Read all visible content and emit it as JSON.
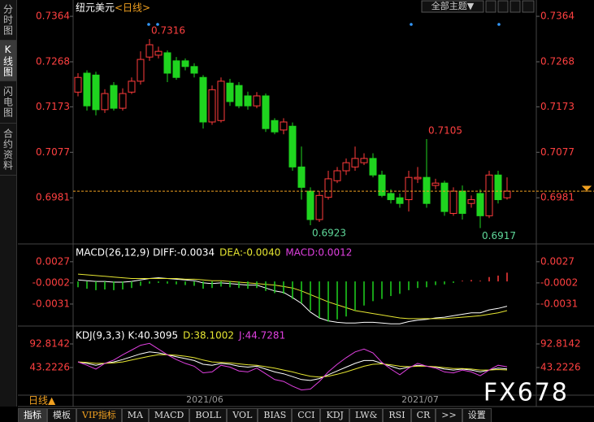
{
  "sidebar": [
    "分时图",
    "K线图",
    "闪电图",
    "合约资料"
  ],
  "header": {
    "symbol": "纽元美元",
    "period": "<日线>",
    "theme_button": "全部主题▼"
  },
  "time_axis": {
    "period_button": "日线▲",
    "labels": [
      "2021/06",
      "2021/07"
    ]
  },
  "toolbar": [
    "指标",
    "模板",
    "VIP指标",
    "MA",
    "MACD",
    "BOLL",
    "VOL",
    "BIAS",
    "CCI",
    "KDJ",
    "LW&",
    "RSI",
    "CR",
    ">>",
    "设置"
  ],
  "watermark": "FX678",
  "chart_data": [
    {
      "type": "candlestick",
      "open": [
        0.7204,
        0.7244,
        0.724,
        0.7167,
        0.7218,
        0.717,
        0.7204,
        0.7227,
        0.7278,
        0.7282,
        0.7287,
        0.727,
        0.727,
        0.7258,
        0.7235,
        0.7141,
        0.7144,
        0.7223,
        0.7218,
        0.7196,
        0.7175,
        0.7196,
        0.7144,
        0.7124,
        0.7132,
        0.7046,
        0.6995,
        0.6935,
        0.6982,
        0.7017,
        0.7038,
        0.7046,
        0.7055,
        0.7064,
        0.7029,
        0.699,
        0.6981,
        0.6977,
        0.7021,
        0.7024,
        0.7007,
        0.7012,
        0.6948,
        0.6995,
        0.6969,
        0.699,
        0.6943,
        0.7029,
        0.6981
      ],
      "high": [
        0.7244,
        0.725,
        0.7247,
        0.721,
        0.7225,
        0.7212,
        0.7235,
        0.729,
        0.7316,
        0.73,
        0.7292,
        0.7278,
        0.7275,
        0.7265,
        0.724,
        0.7218,
        0.7235,
        0.7232,
        0.7225,
        0.7205,
        0.7204,
        0.7201,
        0.7149,
        0.7149,
        0.714,
        0.7089,
        0.7003,
        0.6995,
        0.7038,
        0.7046,
        0.7064,
        0.7089,
        0.7075,
        0.7075,
        0.7038,
        0.6999,
        0.699,
        0.7038,
        0.7046,
        0.7105,
        0.7021,
        0.7017,
        0.7003,
        0.7007,
        0.6986,
        0.6999,
        0.7038,
        0.7038,
        0.7024
      ],
      "low": [
        0.7195,
        0.7165,
        0.7155,
        0.716,
        0.7165,
        0.7165,
        0.72,
        0.722,
        0.727,
        0.7275,
        0.7225,
        0.723,
        0.725,
        0.7235,
        0.7127,
        0.7135,
        0.714,
        0.7175,
        0.717,
        0.7167,
        0.717,
        0.712,
        0.7115,
        0.7115,
        0.7038,
        0.6977,
        0.6923,
        0.693,
        0.6977,
        0.7012,
        0.7029,
        0.7038,
        0.705,
        0.7024,
        0.6982,
        0.6969,
        0.696,
        0.6952,
        0.7012,
        0.696,
        0.6999,
        0.6943,
        0.6943,
        0.6935,
        0.696,
        0.6917,
        0.6938,
        0.6969,
        0.6977
      ],
      "close": [
        0.7235,
        0.7175,
        0.7167,
        0.7201,
        0.717,
        0.7201,
        0.7227,
        0.7273,
        0.7304,
        0.729,
        0.7244,
        0.7235,
        0.7258,
        0.7244,
        0.7141,
        0.7209,
        0.7227,
        0.7184,
        0.7175,
        0.7175,
        0.7196,
        0.7127,
        0.712,
        0.7141,
        0.7046,
        0.7003,
        0.6935,
        0.6986,
        0.7021,
        0.7038,
        0.7055,
        0.7064,
        0.7064,
        0.7029,
        0.6986,
        0.6977,
        0.6969,
        0.7024,
        0.7024,
        0.6969,
        0.7012,
        0.6952,
        0.6995,
        0.6948,
        0.6977,
        0.6943,
        0.7029,
        0.6977,
        0.6995
      ],
      "up_color": "#ff3b3b",
      "down_color": "#1fd41f",
      "ylim": [
        0.6887,
        0.7395
      ],
      "yticks": [
        0.6981,
        0.7077,
        0.7173,
        0.7268,
        0.7364
      ],
      "current_price": 0.6995,
      "annotations": [
        0.7316,
        0.7105,
        0.6923,
        0.6917
      ]
    },
    {
      "type": "macd",
      "title": "MACD(26,12,9)",
      "series": [
        {
          "name": "DIFF:-0.0034",
          "color": "#ffffff",
          "values": [
            0.0002,
            0.0001,
            0.0,
            0.0,
            -0.0001,
            -0.0001,
            0.0,
            0.0002,
            0.0004,
            0.0005,
            0.0004,
            0.0003,
            0.0002,
            0.0001,
            -0.0002,
            -0.0003,
            -0.0002,
            -0.0003,
            -0.0004,
            -0.0005,
            -0.0005,
            -0.0009,
            -0.0013,
            -0.0015,
            -0.0022,
            -0.003,
            -0.0042,
            -0.005,
            -0.0054,
            -0.0056,
            -0.0057,
            -0.0057,
            -0.0056,
            -0.0056,
            -0.0057,
            -0.0058,
            -0.0058,
            -0.0055,
            -0.0053,
            -0.0052,
            -0.005,
            -0.0049,
            -0.0047,
            -0.0045,
            -0.0043,
            -0.0043,
            -0.0039,
            -0.0037,
            -0.0034
          ]
        },
        {
          "name": "DEA:-0.0040",
          "color": "#e6e632",
          "values": [
            0.001,
            0.0009,
            0.0008,
            0.0007,
            0.0006,
            0.0005,
            0.0004,
            0.0004,
            0.0004,
            0.0004,
            0.0004,
            0.0004,
            0.0003,
            0.0003,
            0.0002,
            0.0001,
            0.0001,
            0.0,
            -0.0001,
            -0.0002,
            -0.0003,
            -0.0004,
            -0.0005,
            -0.0007,
            -0.0009,
            -0.0013,
            -0.0018,
            -0.0023,
            -0.0028,
            -0.0032,
            -0.0036,
            -0.004,
            -0.0042,
            -0.0044,
            -0.0046,
            -0.0048,
            -0.005,
            -0.0051,
            -0.0051,
            -0.0051,
            -0.0051,
            -0.0051,
            -0.005,
            -0.0049,
            -0.0048,
            -0.0047,
            -0.0045,
            -0.0043,
            -0.004
          ]
        },
        {
          "name": "MACD:0.0012",
          "color": "#e040e0",
          "type": "bar",
          "values": [
            -0.0008,
            -0.001,
            -0.0012,
            -0.0011,
            -0.0012,
            -0.0011,
            -0.0009,
            -0.0006,
            -0.0003,
            -0.0002,
            -0.0003,
            -0.0004,
            -0.0005,
            -0.0006,
            -0.001,
            -0.0009,
            -0.0007,
            -0.0008,
            -0.0009,
            -0.001,
            -0.0009,
            -0.0013,
            -0.0016,
            -0.0017,
            -0.0024,
            -0.003,
            -0.004,
            -0.005,
            -0.0055,
            -0.0052,
            -0.0048,
            -0.004,
            -0.0033,
            -0.0027,
            -0.0024,
            -0.002,
            -0.0017,
            -0.0012,
            -0.0009,
            -0.0008,
            -0.0005,
            -0.0004,
            -0.0002,
            0.0001,
            0.0002,
            0.0001,
            0.0006,
            0.0008,
            0.0012
          ]
        }
      ],
      "up_color": "#ff3b3b",
      "down_color": "#1fd41f",
      "ylim": [
        -0.006,
        0.0048
      ],
      "yticks": [
        -0.0031,
        -0.0002,
        0.0027
      ]
    },
    {
      "type": "kdj",
      "title": "KDJ(9,3,3)",
      "series": [
        {
          "name": "K:40.3095",
          "color": "#ffffff",
          "values": [
            55,
            52,
            48,
            52,
            55,
            60,
            66,
            72,
            76,
            74,
            70,
            66,
            62,
            58,
            50,
            48,
            52,
            50,
            46,
            44,
            46,
            40,
            34,
            30,
            24,
            18,
            16,
            20,
            28,
            36,
            44,
            52,
            58,
            58,
            52,
            46,
            40,
            44,
            48,
            46,
            44,
            40,
            38,
            40,
            38,
            34,
            38,
            42,
            40.3095
          ]
        },
        {
          "name": "D:38.1002",
          "color": "#e6e632",
          "values": [
            55,
            54,
            52,
            52,
            53,
            55,
            59,
            63,
            67,
            70,
            70,
            69,
            67,
            64,
            59,
            55,
            54,
            53,
            51,
            49,
            48,
            45,
            42,
            38,
            34,
            29,
            25,
            23,
            25,
            29,
            34,
            40,
            46,
            50,
            51,
            49,
            46,
            45,
            46,
            46,
            45,
            43,
            41,
            41,
            40,
            38,
            38,
            39,
            38.1002
          ]
        },
        {
          "name": "J:44.7281",
          "color": "#e040e0",
          "values": [
            55,
            48,
            40,
            52,
            59,
            70,
            80,
            90,
            94,
            82,
            70,
            60,
            52,
            46,
            32,
            34,
            48,
            44,
            36,
            34,
            42,
            30,
            18,
            14,
            4,
            -4,
            -2,
            14,
            34,
            50,
            64,
            76,
            82,
            74,
            54,
            40,
            28,
            42,
            52,
            46,
            42,
            34,
            32,
            38,
            34,
            26,
            38,
            48,
            44.7281
          ]
        }
      ],
      "ylim": [
        -13.2,
        123.6
      ],
      "yticks": [
        43.2226,
        92.8142
      ]
    }
  ]
}
